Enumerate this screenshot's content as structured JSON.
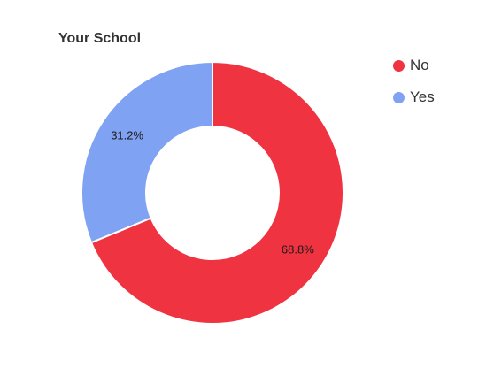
{
  "chart_data": {
    "type": "pie",
    "title": "Your School",
    "categories": [
      "No",
      "Yes"
    ],
    "values": [
      68.8,
      31.2
    ],
    "data_labels": [
      "68.8%",
      "31.2%"
    ],
    "colors": [
      "#ef3340",
      "#80a2f2"
    ],
    "legend_position": "top-right",
    "donut": true
  }
}
